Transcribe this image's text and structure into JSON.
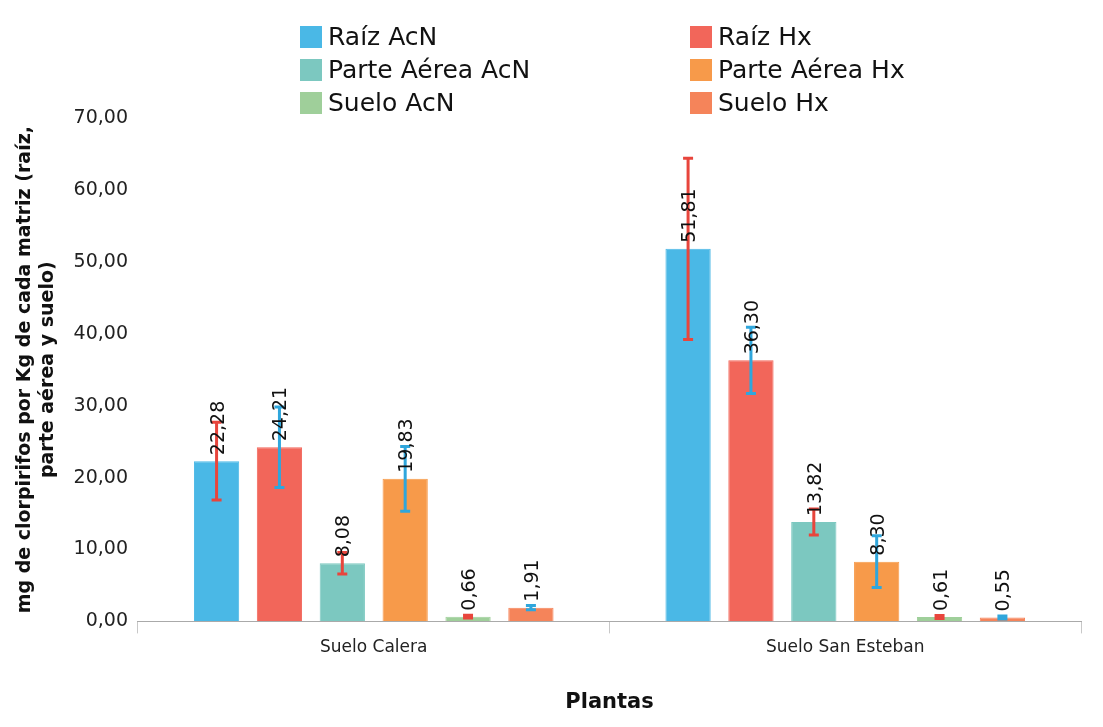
{
  "chart_data": {
    "type": "bar",
    "xlabel": "Plantas",
    "ylabel": "mg de clorpirifos por Kg de cada matriz (raíz, parte aérea y suelo)",
    "categories": [
      "Suelo Calera",
      "Suelo San Esteban"
    ],
    "series": [
      {
        "name": "Raíz AcN",
        "color": "#4ab8e6",
        "values": [
          22.28,
          51.81
        ],
        "errors": [
          5.4,
          12.6
        ],
        "value_labels": [
          "22,28",
          "51,81"
        ]
      },
      {
        "name": "Raíz Hx",
        "color": "#f2665a",
        "values": [
          24.21,
          36.3
        ],
        "errors": [
          5.6,
          4.6
        ],
        "value_labels": [
          "24,21",
          "36,30"
        ]
      },
      {
        "name": "Parte Aérea AcN",
        "color": "#7cc8c0",
        "values": [
          8.08,
          13.82
        ],
        "errors": [
          1.5,
          1.8
        ],
        "value_labels": [
          "8,08",
          "13,82"
        ]
      },
      {
        "name": "Parte Aérea Hx",
        "color": "#f79a4a",
        "values": [
          19.83,
          8.3
        ],
        "errors": [
          4.5,
          3.6
        ],
        "value_labels": [
          "19,83",
          "8,30"
        ]
      },
      {
        "name": "Suelo AcN",
        "color": "#9fcf9a",
        "values": [
          0.66,
          0.61
        ],
        "errors": [
          0.2,
          0.2
        ],
        "value_labels": [
          "0,66",
          "0,61"
        ]
      },
      {
        "name": "Suelo Hx",
        "color": "#f5845a",
        "values": [
          1.91,
          0.55
        ],
        "errors": [
          0.3,
          0.2
        ],
        "value_labels": [
          "1,91",
          "0,55"
        ]
      }
    ],
    "ylim": [
      0,
      70
    ],
    "yticks": [
      {
        "value": 0,
        "label": "0,00"
      },
      {
        "value": 10,
        "label": "10,00"
      },
      {
        "value": 20,
        "label": "20,00"
      },
      {
        "value": 30,
        "label": "30,00"
      },
      {
        "value": 40,
        "label": "40,00"
      },
      {
        "value": 50,
        "label": "50,00"
      },
      {
        "value": 60,
        "label": "60,00"
      },
      {
        "value": 70,
        "label": "70,00"
      }
    ],
    "legend": "top"
  }
}
